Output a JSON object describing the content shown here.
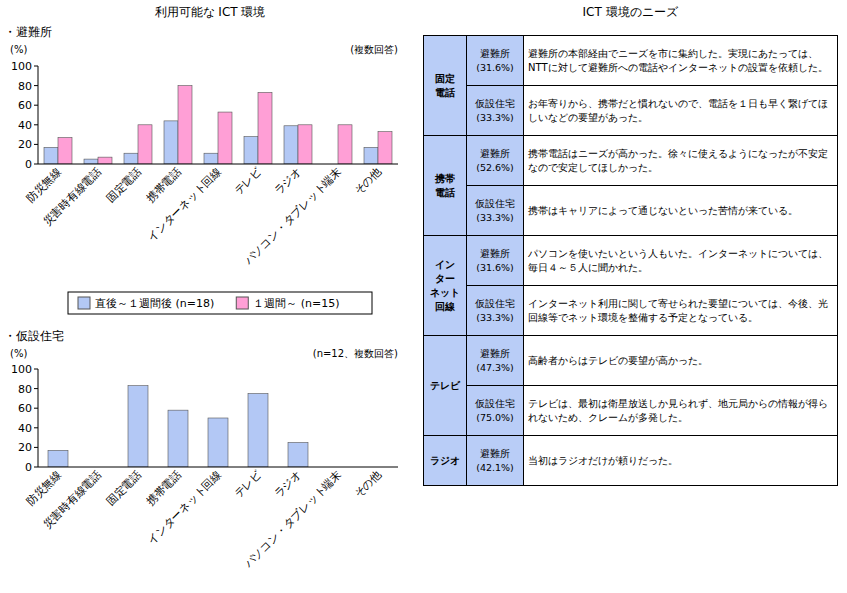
{
  "titles": {
    "left": "利用可能な ICT 環境",
    "right": "ICT 環境のニーズ"
  },
  "chart_data": [
    {
      "type": "bar",
      "title": "・避難所",
      "y_label": "(%)",
      "note": "(複数回答)",
      "categories": [
        "防災無線",
        "災害時有線電話",
        "固定電話",
        "携帯電話",
        "インターネット回線",
        "テレビ",
        "ラジオ",
        "パソコン・タブレット端末",
        "その他"
      ],
      "series": [
        {
          "name": "直後～１週間後 (n=18)",
          "color": "#b3c8f5",
          "values": [
            17,
            5,
            11,
            44,
            11,
            28,
            39,
            0,
            17
          ]
        },
        {
          "name": "１週間～ (n=15)",
          "color": "#ff9fd6",
          "values": [
            27,
            7,
            40,
            80,
            53,
            73,
            40,
            40,
            33
          ]
        }
      ],
      "ylim": [
        0,
        100
      ],
      "yticks": [
        0,
        20,
        40,
        60,
        80,
        100
      ],
      "grid": false,
      "legend": "bottom"
    },
    {
      "type": "bar",
      "title": "・仮設住宅",
      "y_label": "(%)",
      "note": "(n=12、複数回答)",
      "categories": [
        "防災無線",
        "災害時有線電話",
        "固定電話",
        "携帯電話",
        "インターネット回線",
        "テレビ",
        "ラジオ",
        "パソコン・タブレット端末",
        "その他"
      ],
      "values": [
        17,
        0,
        83,
        58,
        50,
        75,
        25,
        0,
        0
      ],
      "color": "#b3c8f5",
      "ylim": [
        0,
        100
      ],
      "yticks": [
        0,
        20,
        40,
        60,
        80,
        100
      ],
      "grid": false
    }
  ],
  "table": {
    "rows": [
      {
        "category": [
          "固定",
          "電話"
        ],
        "items": [
          {
            "place": "避難所",
            "share": "(31.6%)",
            "text": "避難所の本部経由でニーズを市に集約した。実現にあたっては、NTTに対して避難所への電話やインターネットの設置を依頼した。"
          },
          {
            "place": "仮設住宅",
            "share": "(33.3%)",
            "text": "お年寄りから、携帯だと慣れないので、電話を１日も早く繋げてほしいなどの要望があった。"
          }
        ]
      },
      {
        "category": [
          "携帯",
          "電話"
        ],
        "items": [
          {
            "place": "避難所",
            "share": "(52.6%)",
            "text": "携帯電話はニーズが高かった。徐々に使えるようになったが不安定なので安定してほしかった。"
          },
          {
            "place": "仮設住宅",
            "share": "(33.3%)",
            "text": "携帯はキャリアによって通じないといった苦情が来ている。"
          }
        ]
      },
      {
        "category": [
          "イン",
          "ター",
          "ネット",
          "回線"
        ],
        "items": [
          {
            "place": "避難所",
            "share": "(31.6%)",
            "text": "パソコンを使いたいという人もいた。インターネットについては、毎日４～５人に聞かれた。"
          },
          {
            "place": "仮設住宅",
            "share": "(33.3%)",
            "text": "インターネット利用に関して寄せられた要望については、今後、光回線等でネット環境を整備する予定となっている。"
          }
        ]
      },
      {
        "category": [
          "テレビ"
        ],
        "items": [
          {
            "place": "避難所",
            "share": "(47.3%)",
            "text": "高齢者からはテレビの要望が高かった。"
          },
          {
            "place": "仮設住宅",
            "share": "(75.0%)",
            "text": "テレビは、最初は衛星放送しか見られず、地元局からの情報が得られないため、クレームが多発した。"
          }
        ]
      },
      {
        "category": [
          "ラジオ"
        ],
        "items": [
          {
            "place": "避難所",
            "share": "(42.1%)",
            "text": "当初はラジオだけが頼りだった。"
          }
        ]
      }
    ]
  }
}
